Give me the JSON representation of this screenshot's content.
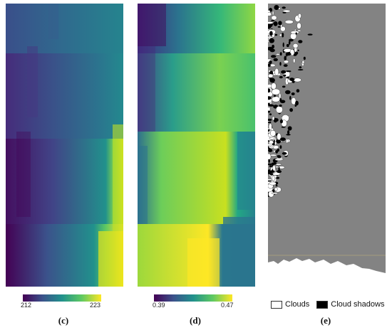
{
  "figure": {
    "panels": [
      {
        "id": "c",
        "label": "(c)",
        "colorbar": {
          "min": "212",
          "max": "223",
          "colormap": "viridis"
        }
      },
      {
        "id": "d",
        "label": "(d)",
        "colorbar": {
          "min": "0.39",
          "max": "0.47",
          "colormap": "viridis"
        }
      },
      {
        "id": "e",
        "label": "(e)"
      }
    ],
    "legend": {
      "clouds_label": "Clouds",
      "shadows_label": "Cloud shadows"
    },
    "colors": {
      "viridis_low": "#440154",
      "viridis_mid": "#21918c",
      "viridis_high": "#fde725",
      "mask_background": "#838383",
      "cloud": "#ffffff",
      "shadow": "#000000"
    }
  }
}
